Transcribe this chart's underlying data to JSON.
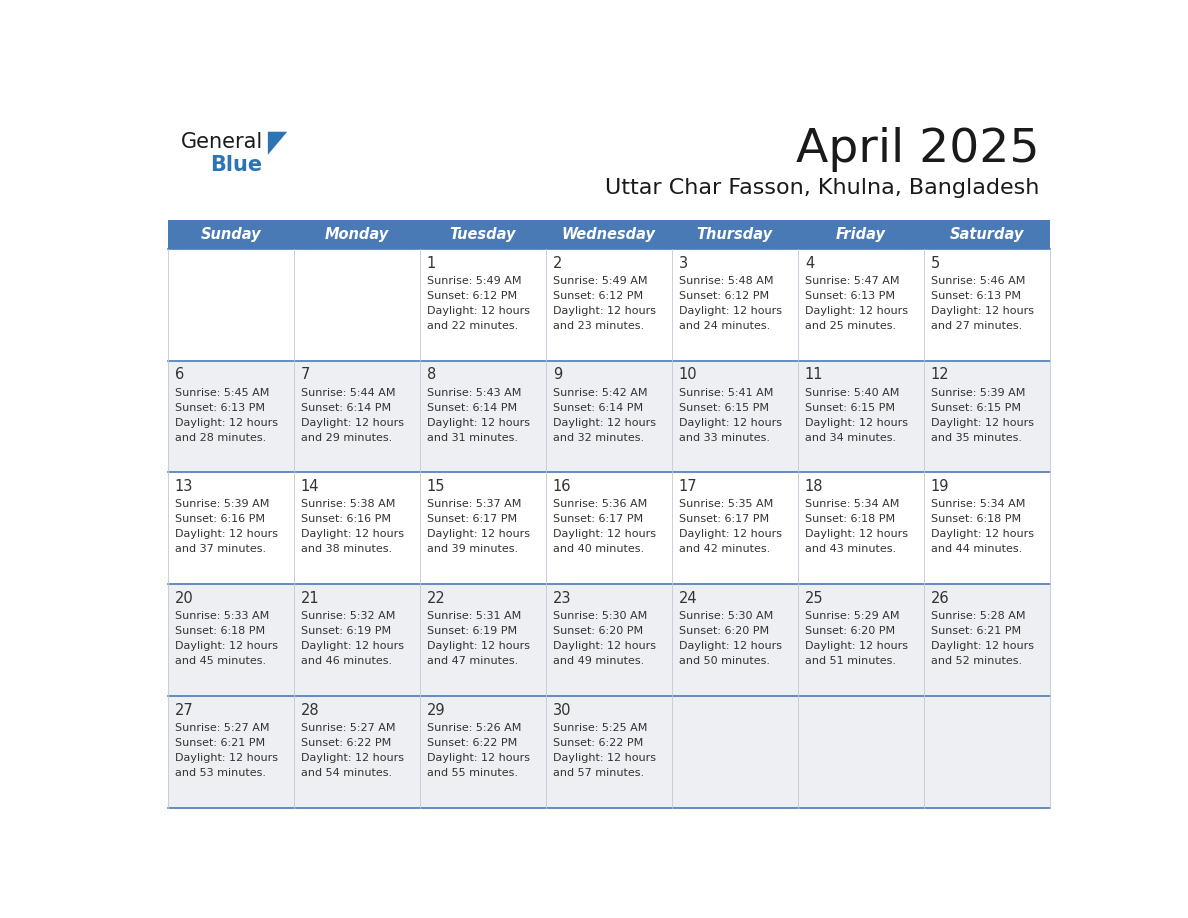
{
  "title": "April 2025",
  "subtitle": "Uttar Char Fasson, Khulna, Bangladesh",
  "header_color": "#4a7ab5",
  "header_text_color": "#ffffff",
  "bg_color": "#ffffff",
  "cell_bg_white": "#ffffff",
  "cell_bg_gray": "#eeeff2",
  "text_color": "#333333",
  "separator_color": "#4a7ab5",
  "days_of_week": [
    "Sunday",
    "Monday",
    "Tuesday",
    "Wednesday",
    "Thursday",
    "Friday",
    "Saturday"
  ],
  "logo_color": "#2e74b5",
  "logo_triangle_color": "#2e74b5",
  "calendar_data": [
    [
      {
        "day": "",
        "sunrise": "",
        "sunset": "",
        "daylight_min": ""
      },
      {
        "day": "",
        "sunrise": "",
        "sunset": "",
        "daylight_min": ""
      },
      {
        "day": "1",
        "sunrise": "5:49 AM",
        "sunset": "6:12 PM",
        "daylight_min": "22 minutes."
      },
      {
        "day": "2",
        "sunrise": "5:49 AM",
        "sunset": "6:12 PM",
        "daylight_min": "23 minutes."
      },
      {
        "day": "3",
        "sunrise": "5:48 AM",
        "sunset": "6:12 PM",
        "daylight_min": "24 minutes."
      },
      {
        "day": "4",
        "sunrise": "5:47 AM",
        "sunset": "6:13 PM",
        "daylight_min": "25 minutes."
      },
      {
        "day": "5",
        "sunrise": "5:46 AM",
        "sunset": "6:13 PM",
        "daylight_min": "27 minutes."
      }
    ],
    [
      {
        "day": "6",
        "sunrise": "5:45 AM",
        "sunset": "6:13 PM",
        "daylight_min": "28 minutes."
      },
      {
        "day": "7",
        "sunrise": "5:44 AM",
        "sunset": "6:14 PM",
        "daylight_min": "29 minutes."
      },
      {
        "day": "8",
        "sunrise": "5:43 AM",
        "sunset": "6:14 PM",
        "daylight_min": "31 minutes."
      },
      {
        "day": "9",
        "sunrise": "5:42 AM",
        "sunset": "6:14 PM",
        "daylight_min": "32 minutes."
      },
      {
        "day": "10",
        "sunrise": "5:41 AM",
        "sunset": "6:15 PM",
        "daylight_min": "33 minutes."
      },
      {
        "day": "11",
        "sunrise": "5:40 AM",
        "sunset": "6:15 PM",
        "daylight_min": "34 minutes."
      },
      {
        "day": "12",
        "sunrise": "5:39 AM",
        "sunset": "6:15 PM",
        "daylight_min": "35 minutes."
      }
    ],
    [
      {
        "day": "13",
        "sunrise": "5:39 AM",
        "sunset": "6:16 PM",
        "daylight_min": "37 minutes."
      },
      {
        "day": "14",
        "sunrise": "5:38 AM",
        "sunset": "6:16 PM",
        "daylight_min": "38 minutes."
      },
      {
        "day": "15",
        "sunrise": "5:37 AM",
        "sunset": "6:17 PM",
        "daylight_min": "39 minutes."
      },
      {
        "day": "16",
        "sunrise": "5:36 AM",
        "sunset": "6:17 PM",
        "daylight_min": "40 minutes."
      },
      {
        "day": "17",
        "sunrise": "5:35 AM",
        "sunset": "6:17 PM",
        "daylight_min": "42 minutes."
      },
      {
        "day": "18",
        "sunrise": "5:34 AM",
        "sunset": "6:18 PM",
        "daylight_min": "43 minutes."
      },
      {
        "day": "19",
        "sunrise": "5:34 AM",
        "sunset": "6:18 PM",
        "daylight_min": "44 minutes."
      }
    ],
    [
      {
        "day": "20",
        "sunrise": "5:33 AM",
        "sunset": "6:18 PM",
        "daylight_min": "45 minutes."
      },
      {
        "day": "21",
        "sunrise": "5:32 AM",
        "sunset": "6:19 PM",
        "daylight_min": "46 minutes."
      },
      {
        "day": "22",
        "sunrise": "5:31 AM",
        "sunset": "6:19 PM",
        "daylight_min": "47 minutes."
      },
      {
        "day": "23",
        "sunrise": "5:30 AM",
        "sunset": "6:20 PM",
        "daylight_min": "49 minutes."
      },
      {
        "day": "24",
        "sunrise": "5:30 AM",
        "sunset": "6:20 PM",
        "daylight_min": "50 minutes."
      },
      {
        "day": "25",
        "sunrise": "5:29 AM",
        "sunset": "6:20 PM",
        "daylight_min": "51 minutes."
      },
      {
        "day": "26",
        "sunrise": "5:28 AM",
        "sunset": "6:21 PM",
        "daylight_min": "52 minutes."
      }
    ],
    [
      {
        "day": "27",
        "sunrise": "5:27 AM",
        "sunset": "6:21 PM",
        "daylight_min": "53 minutes."
      },
      {
        "day": "28",
        "sunrise": "5:27 AM",
        "sunset": "6:22 PM",
        "daylight_min": "54 minutes."
      },
      {
        "day": "29",
        "sunrise": "5:26 AM",
        "sunset": "6:22 PM",
        "daylight_min": "55 minutes."
      },
      {
        "day": "30",
        "sunrise": "5:25 AM",
        "sunset": "6:22 PM",
        "daylight_min": "57 minutes."
      },
      {
        "day": "",
        "sunrise": "",
        "sunset": "",
        "daylight_min": ""
      },
      {
        "day": "",
        "sunrise": "",
        "sunset": "",
        "daylight_min": ""
      },
      {
        "day": "",
        "sunrise": "",
        "sunset": "",
        "daylight_min": ""
      }
    ]
  ],
  "row_bg": [
    "#ffffff",
    "#eeeff2",
    "#ffffff",
    "#eeeff2",
    "#eeeff2"
  ]
}
